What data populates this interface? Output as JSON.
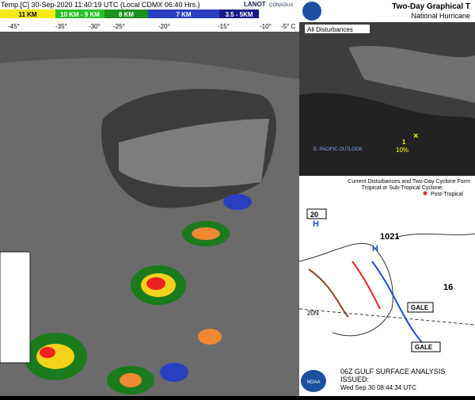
{
  "satellite": {
    "title": "Temp.[C] 30-Sep-2020 11:40:19 UTC (Local CDMX  06:40 Hrs.)",
    "height_labels": [
      "11 KM",
      "10 KM - 9 KM",
      "8 KM",
      "7 KM",
      "3.5 - 5KM"
    ],
    "temp_labels": [
      "-45°",
      "-35°",
      "-30°",
      "-25°",
      "-20°",
      "-15°",
      "-10°",
      "-5° C"
    ],
    "logos": [
      "LANOT",
      "CONAGUA"
    ]
  },
  "outlook": {
    "title": "Two-Day Graphical T",
    "subtitle": "National Hurricane",
    "tab": "All Disturbances",
    "region_label": "E. PACIFIC OUTLOOK",
    "disturbance_number": "1",
    "disturbance_chance": "10%",
    "legend_title": "Current Disturbances and Two-Day Cyclone Form",
    "legend_row": "Tropical or Sub-Tropical Cyclone:",
    "legend_item": "Post-Tropical"
  },
  "surface": {
    "title": "06Z GULF SURFACE ANALYSIS",
    "issued": "ISSUED:",
    "issued_time": "Wed Sep 30 08:44:34 UTC",
    "pressure_high": "1021",
    "pressure_label": "16",
    "box_label": "20",
    "latitude": "20N",
    "warnings": [
      "GALE",
      "GALE"
    ],
    "logo": "NOAA"
  }
}
